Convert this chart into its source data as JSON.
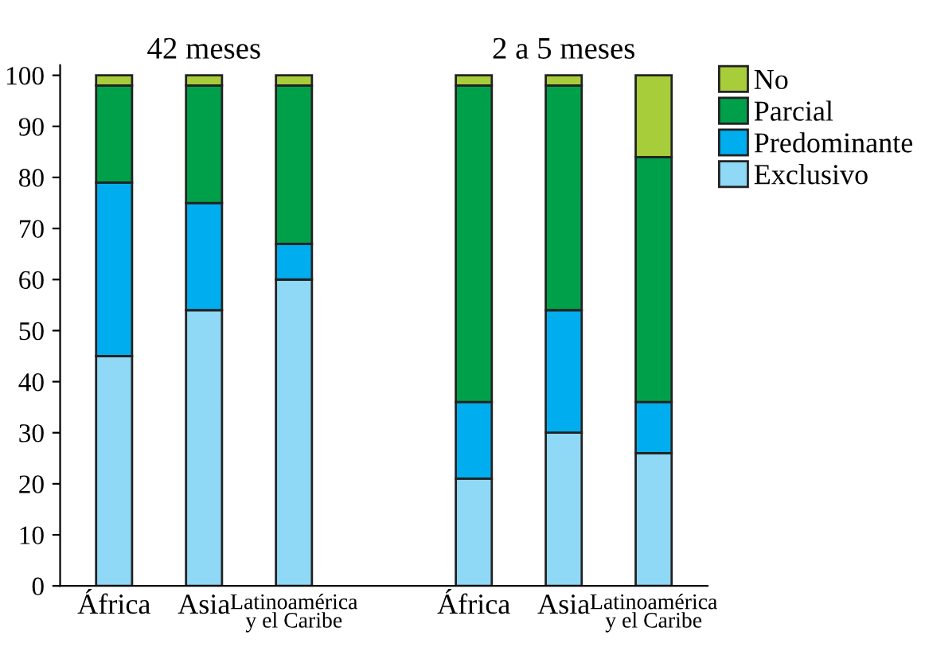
{
  "chart_data": {
    "type": "bar",
    "stacked": true,
    "categories": [
      "África",
      "Asia",
      "Latinoamérica\ny el Caribe",
      null,
      "África",
      "Asia",
      "Latinoamérica\ny el Caribe"
    ],
    "series": [
      {
        "name": "Exclusivo",
        "color": "#8fd8f6",
        "values": [
          45,
          54,
          60,
          null,
          21,
          30,
          26
        ]
      },
      {
        "name": "Predominante",
        "color": "#00aeef",
        "values": [
          34,
          21,
          7,
          null,
          15,
          24,
          10
        ]
      },
      {
        "name": "Parcial",
        "color": "#00a04b",
        "values": [
          19,
          23,
          31,
          null,
          62,
          44,
          48
        ]
      },
      {
        "name": "No",
        "color": "#a8cd3b",
        "values": [
          2,
          2,
          2,
          null,
          2,
          2,
          16
        ]
      }
    ],
    "ylim": [
      0,
      102
    ],
    "yticks": [
      0,
      10,
      20,
      30,
      40,
      50,
      60,
      70,
      80,
      90,
      100
    ],
    "annotations": [
      "42 meses",
      "2 a 5 meses"
    ],
    "legend": "top right",
    "grid": false
  }
}
